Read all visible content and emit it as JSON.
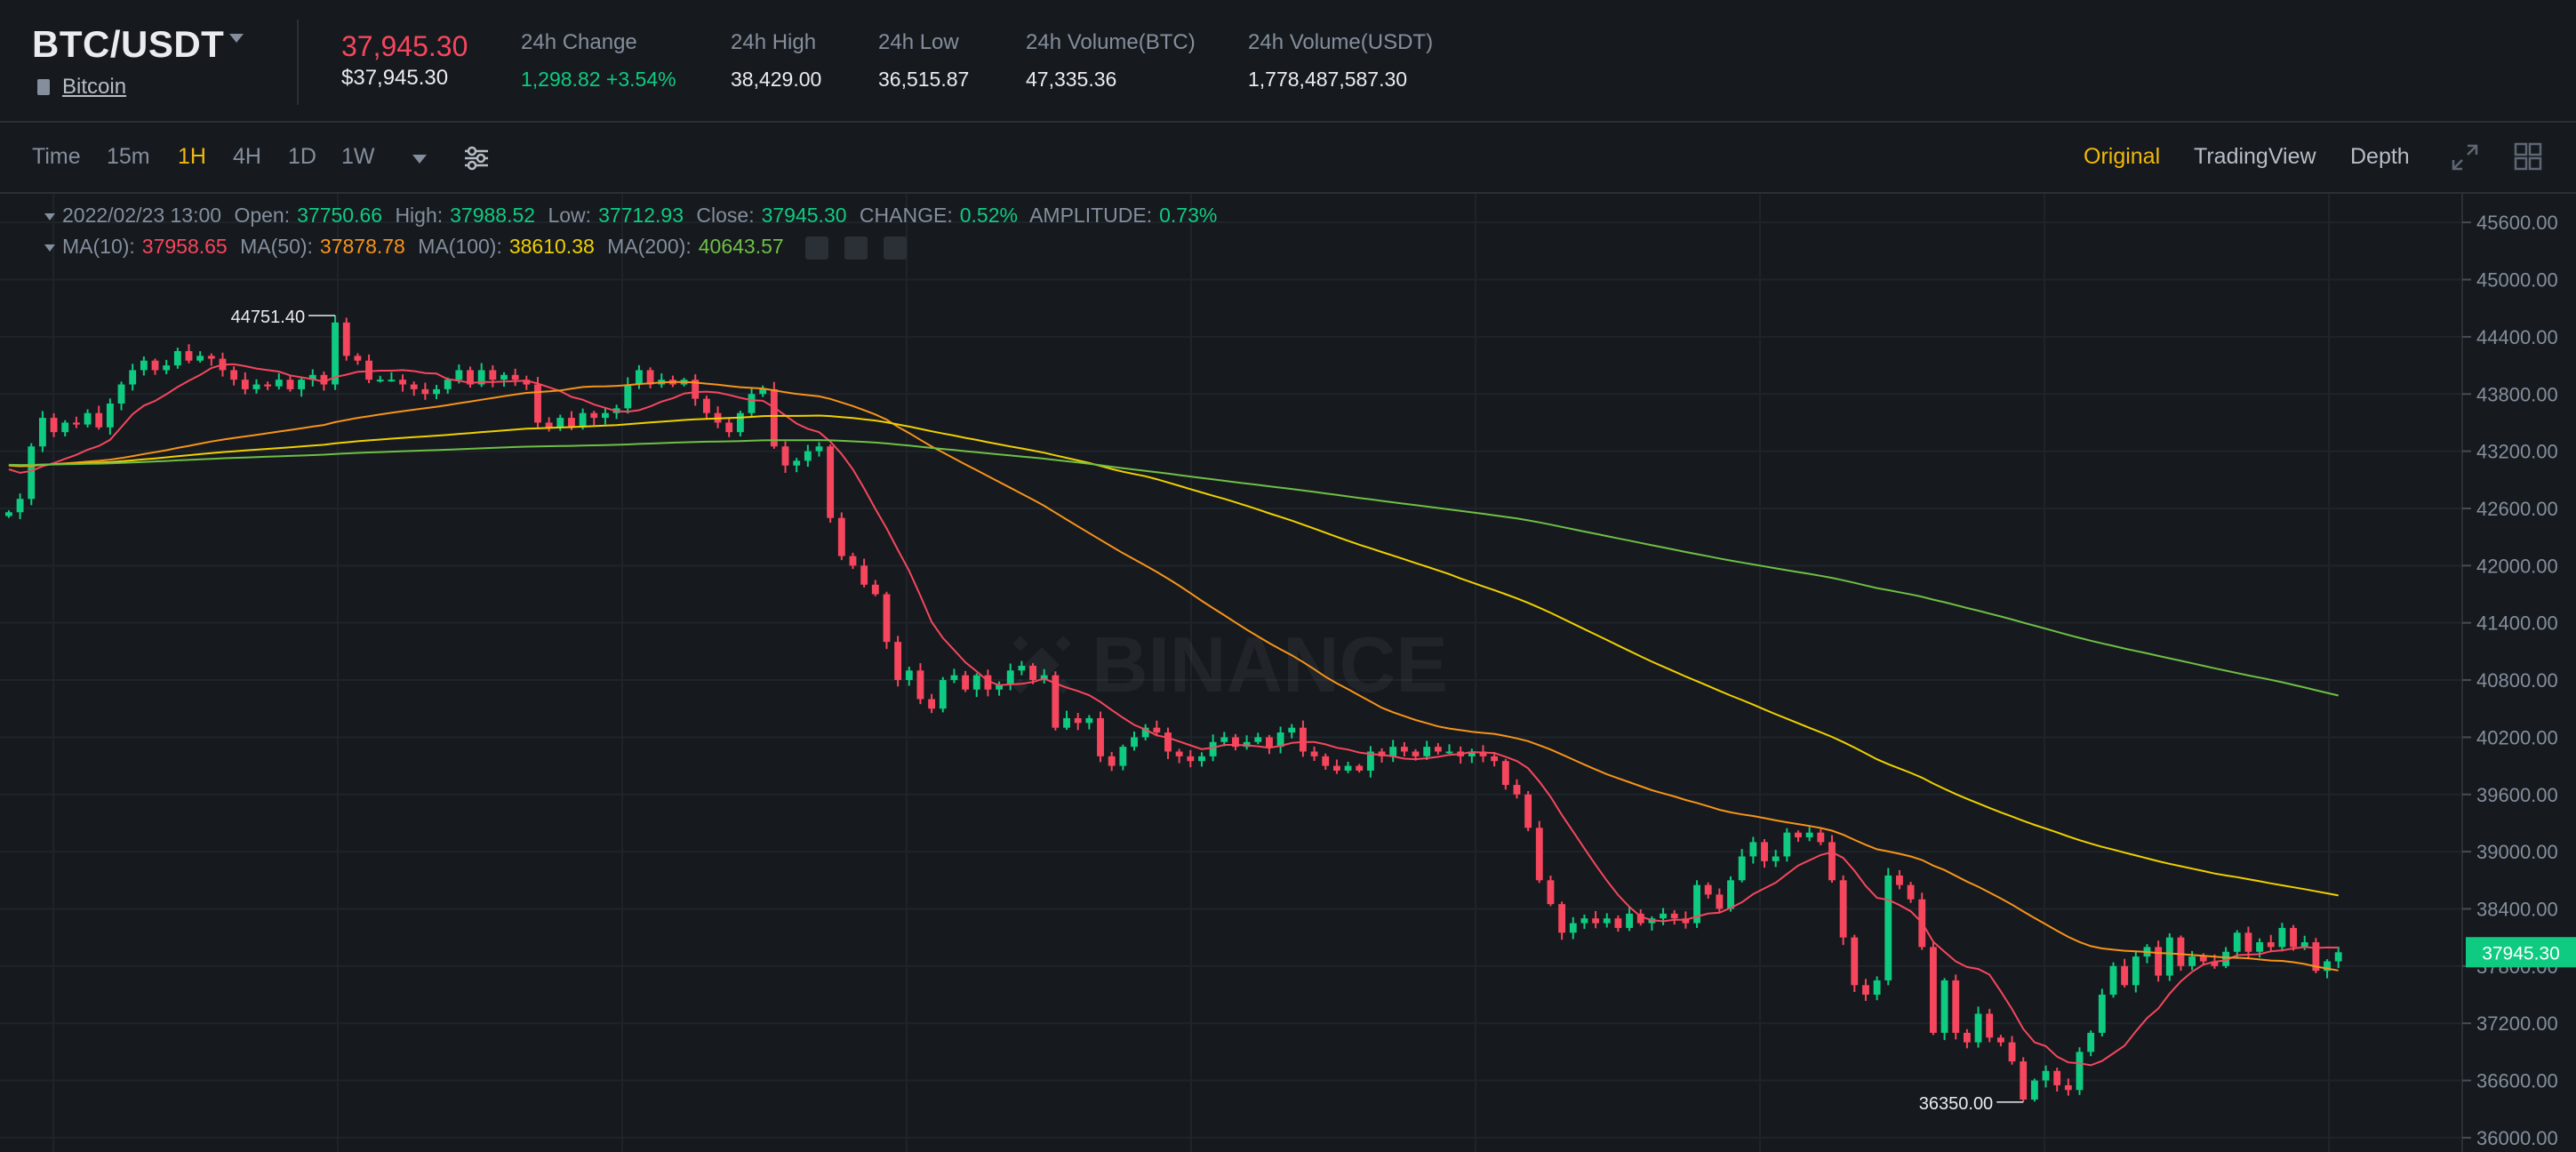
{
  "header": {
    "pair": "BTC/USDT",
    "coin_name": "Bitcoin",
    "last_price": "37,945.30",
    "last_price_usd": "$37,945.30",
    "stats": [
      {
        "label": "24h Change",
        "value": "1,298.82 +3.54%",
        "color": "green"
      },
      {
        "label": "24h High",
        "value": "38,429.00"
      },
      {
        "label": "24h Low",
        "value": "36,515.87"
      },
      {
        "label": "24h Volume(BTC)",
        "value": "47,335.36"
      },
      {
        "label": "24h Volume(USDT)",
        "value": "1,778,487,587.30"
      }
    ]
  },
  "toolbar": {
    "intervals": [
      "Time",
      "15m",
      "1H",
      "4H",
      "1D",
      "1W"
    ],
    "active_interval": "1H",
    "views": [
      "Original",
      "TradingView",
      "Depth"
    ],
    "active_view": "Original"
  },
  "legend": {
    "date": "2022/02/23 13:00",
    "open_label": "Open:",
    "open": "37750.66",
    "high_label": "High:",
    "high": "37988.52",
    "low_label": "Low:",
    "low": "37712.93",
    "close_label": "Close:",
    "close": "37945.30",
    "change_label": "CHANGE:",
    "change": "0.52%",
    "amplitude_label": "AMPLITUDE:",
    "amplitude": "0.73%",
    "ma10_label": "MA(10):",
    "ma10": "37958.65",
    "ma50_label": "MA(50):",
    "ma50": "37878.78",
    "ma100_label": "MA(100):",
    "ma100": "38610.38",
    "ma200_label": "MA(200):",
    "ma200": "40643.57"
  },
  "watermark": "BINANCE",
  "colors": {
    "up": "#0ecb81",
    "down": "#f6465d",
    "accent": "#f0b90b",
    "ma10": "#f6465d",
    "ma50": "#f7931a",
    "ma100": "#f0d000",
    "ma200": "#6fbf45"
  },
  "chart_data": {
    "type": "candlestick",
    "y_ticks": [
      "45600.00",
      "45000.00",
      "44400.00",
      "43800.00",
      "43200.00",
      "42600.00",
      "42000.00",
      "41400.00",
      "40800.00",
      "40200.00",
      "39600.00",
      "39000.00",
      "38400.00",
      "37800.00",
      "37200.00",
      "36600.00",
      "36000.00"
    ],
    "ylim": [
      35850,
      45900
    ],
    "current_price_tag": "37945.30",
    "max_marker": "44751.40",
    "min_marker": "36350.00",
    "closes": [
      42560,
      42700,
      43250,
      43550,
      43400,
      43500,
      43480,
      43600,
      43450,
      43700,
      43900,
      44050,
      44150,
      44050,
      44100,
      44250,
      44150,
      44200,
      44170,
      44050,
      43950,
      43850,
      43900,
      43880,
      43950,
      43850,
      43950,
      44000,
      43900,
      44550,
      44200,
      44150,
      43950,
      43950,
      43950,
      43900,
      43850,
      43800,
      43850,
      43950,
      44050,
      43900,
      44050,
      43950,
      44000,
      43950,
      43900,
      43500,
      43450,
      43550,
      43450,
      43600,
      43550,
      43600,
      43650,
      43900,
      44050,
      43900,
      43950,
      43900,
      43950,
      43750,
      43600,
      43500,
      43400,
      43600,
      43800,
      43850,
      43250,
      43050,
      43100,
      43200,
      43250,
      42500,
      42100,
      42000,
      41800,
      41700,
      41200,
      40800,
      40900,
      40600,
      40500,
      40800,
      40850,
      40700,
      40850,
      40700,
      40750,
      40900,
      40950,
      40800,
      40850,
      40300,
      40400,
      40350,
      40400,
      40000,
      39900,
      40100,
      40200,
      40300,
      40250,
      40050,
      40000,
      39950,
      40000,
      40150,
      40200,
      40100,
      40150,
      40200,
      40100,
      40250,
      40300,
      40050,
      40000,
      39900,
      39850,
      39900,
      39850,
      40050,
      40000,
      40100,
      40050,
      40000,
      40100,
      40050,
      40050,
      40000,
      40050,
      40000,
      39950,
      39700,
      39600,
      39250,
      38700,
      38450,
      38150,
      38250,
      38300,
      38250,
      38300,
      38200,
      38350,
      38250,
      38300,
      38350,
      38300,
      38250,
      38650,
      38550,
      38400,
      38700,
      38950,
      39100,
      38900,
      38950,
      39200,
      39150,
      39200,
      39100,
      38700,
      38100,
      37600,
      37500,
      37650,
      38750,
      38650,
      38500,
      38000,
      37100,
      37650,
      37100,
      37000,
      37300,
      37050,
      37000,
      36800,
      36400,
      36600,
      36700,
      36550,
      36500,
      36900,
      37100,
      37500,
      37800,
      37600,
      37900,
      38000,
      37700,
      38100,
      37800,
      37900,
      37850,
      37800,
      37950,
      38150,
      37950,
      38050,
      38000,
      38200,
      38000,
      38050,
      37750,
      37850,
      37945
    ],
    "last_candle_time": "2022/02/23 13:00",
    "interval": "1H",
    "series": [
      {
        "name": "MA(10)",
        "last": 37958.65
      },
      {
        "name": "MA(50)",
        "last": 37878.78
      },
      {
        "name": "MA(100)",
        "last": 38610.38
      },
      {
        "name": "MA(200)",
        "last": 40643.57
      }
    ]
  }
}
